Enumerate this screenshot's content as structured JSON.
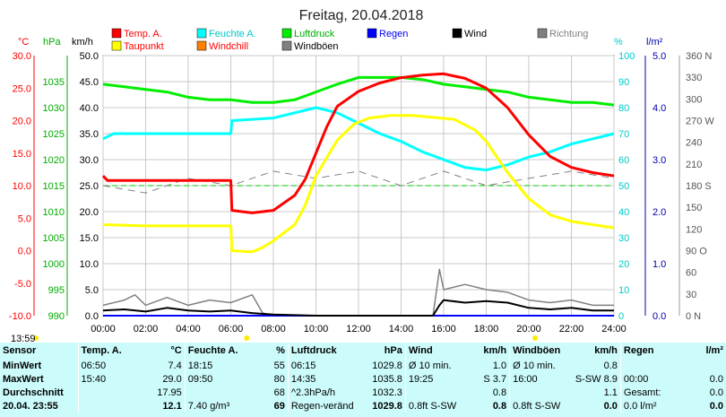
{
  "title": "Freitag, 20.04.2018",
  "colors": {
    "temp": "#ff0000",
    "humidity": "#00ffff",
    "pressure": "#00ee00",
    "wind": "#000000",
    "direction": "#808080",
    "dewpoint": "#ffff00",
    "windchill": "#ff8000",
    "gusts": "#808080",
    "rain": "#0000ff",
    "axisRed": "#ff0000",
    "axisBlue": "#0000aa",
    "axisCyan": "#00c8c8",
    "axisGreen": "#00aa00",
    "grid": "#c8c8c8",
    "dashed": "#00cc00"
  },
  "axes": {
    "celsius_label": "°C",
    "hpa_label": "hPa",
    "kmh_label": "km/h",
    "pct_label": "%",
    "rain_label": "l/m²",
    "celsius_ticks": [
      "30.0",
      "25.0",
      "20.0",
      "15.0",
      "10.0",
      "5.0",
      "0.0",
      "-5.0",
      "-10.0"
    ],
    "hpa_ticks": [
      "1035",
      "1030",
      "1025",
      "1020",
      "1015",
      "1010",
      "1005",
      "1000",
      "995",
      "990"
    ],
    "kmh_ticks": [
      "50.0",
      "45.0",
      "40.0",
      "35.0",
      "30.0",
      "25.0",
      "20.0",
      "15.0",
      "10.0",
      "5.0",
      "0.0"
    ],
    "pct_ticks": [
      "100",
      "90",
      "80",
      "70",
      "60",
      "50",
      "40",
      "30",
      "20",
      "10",
      "0"
    ],
    "rain_ticks": [
      "5.0",
      "4.0",
      "3.0",
      "2.0",
      "1.0",
      "0.0"
    ],
    "dir_ticks": [
      "360 N",
      "330",
      "300",
      "270 W",
      "240",
      "210",
      "180 S",
      "150",
      "120",
      "90 O",
      "60",
      "30",
      "0 N"
    ],
    "time_ticks": [
      "00:00",
      "02:00",
      "04:00",
      "06:00",
      "08:00",
      "10:00",
      "12:00",
      "14:00",
      "16:00",
      "18:00",
      "20:00",
      "22:00",
      "24:00"
    ]
  },
  "legend": [
    {
      "label": "Temp. A.",
      "color": "#ff0000",
      "text_color": "#ff0000"
    },
    {
      "label": "Feuchte A.",
      "color": "#00ffff",
      "text_color": "#00c8c8"
    },
    {
      "label": "Luftdruck",
      "color": "#00ee00",
      "text_color": "#00aa00"
    },
    {
      "label": "Regen",
      "color": "#0000ff",
      "text_color": "#0000ff"
    },
    {
      "label": "Wind",
      "color": "#000000",
      "text_color": "#000000"
    },
    {
      "label": "Richtung",
      "color": "#808080",
      "text_color": "#808080"
    },
    {
      "label": "Taupunkt",
      "color": "#ffff00",
      "text_color": "#ff0000"
    },
    {
      "label": "Windchill",
      "color": "#ff8000",
      "text_color": "#ff0000"
    },
    {
      "label": "Windböen",
      "color": "#808080",
      "text_color": "#000000"
    }
  ],
  "chart_data": {
    "type": "line",
    "title": "Freitag, 20.04.2018",
    "xlabel": "",
    "x_unit": "hours",
    "xlim": [
      0,
      24
    ],
    "ylim_celsius": [
      -10,
      30
    ],
    "ylim_hpa": [
      990,
      1040
    ],
    "ylim_kmh": [
      0,
      50
    ],
    "ylim_pct": [
      0,
      100
    ],
    "ylim_rain": [
      0,
      5
    ],
    "ylim_dir": [
      0,
      360
    ],
    "grid": true,
    "series": [
      {
        "name": "Temp. A.",
        "unit": "°C",
        "points": [
          [
            0,
            11.5
          ],
          [
            0.2,
            10.8
          ],
          [
            2,
            10.8
          ],
          [
            4,
            10.8
          ],
          [
            6,
            10.8
          ],
          [
            6.05,
            6.2
          ],
          [
            7,
            5.8
          ],
          [
            8,
            6.2
          ],
          [
            9,
            8.5
          ],
          [
            9.5,
            11
          ],
          [
            10,
            15
          ],
          [
            10.5,
            19
          ],
          [
            11,
            22.2
          ],
          [
            12,
            24.5
          ],
          [
            13,
            25.8
          ],
          [
            14,
            26.6
          ],
          [
            15,
            27
          ],
          [
            16,
            27.2
          ],
          [
            17,
            26.5
          ],
          [
            18,
            25
          ],
          [
            19,
            22
          ],
          [
            20,
            17.8
          ],
          [
            21,
            14.5
          ],
          [
            22,
            12.8
          ],
          [
            23,
            12
          ],
          [
            24,
            11.5
          ]
        ]
      },
      {
        "name": "Taupunkt",
        "unit": "°C",
        "points": [
          [
            0,
            4
          ],
          [
            2,
            3.8
          ],
          [
            4,
            3.8
          ],
          [
            6,
            3.8
          ],
          [
            6.05,
            0
          ],
          [
            7,
            -0.2
          ],
          [
            7.5,
            0.5
          ],
          [
            8,
            1.5
          ],
          [
            9,
            4
          ],
          [
            9.5,
            7
          ],
          [
            10,
            11.5
          ],
          [
            11,
            17
          ],
          [
            11.8,
            19.5
          ],
          [
            12.5,
            20.4
          ],
          [
            13.5,
            20.8
          ],
          [
            14.5,
            20.8
          ],
          [
            15.5,
            20.5
          ],
          [
            16.5,
            20.2
          ],
          [
            17.5,
            18.5
          ],
          [
            18,
            16.8
          ],
          [
            19,
            12
          ],
          [
            20,
            8
          ],
          [
            21,
            5.5
          ],
          [
            22,
            4.5
          ],
          [
            23,
            4
          ],
          [
            24,
            3.5
          ]
        ]
      },
      {
        "name": "Feuchte A.",
        "unit": "%",
        "points": [
          [
            0,
            68
          ],
          [
            0.5,
            70
          ],
          [
            2,
            70
          ],
          [
            4,
            70
          ],
          [
            6,
            70
          ],
          [
            6.05,
            75
          ],
          [
            8,
            76
          ],
          [
            9,
            78
          ],
          [
            10,
            80
          ],
          [
            11,
            78
          ],
          [
            12,
            74
          ],
          [
            13,
            70
          ],
          [
            14,
            67
          ],
          [
            15,
            63
          ],
          [
            16,
            60
          ],
          [
            17,
            57
          ],
          [
            18,
            56
          ],
          [
            19,
            58
          ],
          [
            20,
            61
          ],
          [
            21,
            63
          ],
          [
            22,
            66
          ],
          [
            23,
            68
          ],
          [
            24,
            70
          ]
        ]
      },
      {
        "name": "Luftdruck",
        "unit": "hPa",
        "points": [
          [
            0,
            1034.5
          ],
          [
            1,
            1034
          ],
          [
            2,
            1033.5
          ],
          [
            3,
            1033
          ],
          [
            4,
            1032
          ],
          [
            5,
            1031.5
          ],
          [
            6,
            1031.5
          ],
          [
            7,
            1031
          ],
          [
            8,
            1031
          ],
          [
            9,
            1031.5
          ],
          [
            10,
            1033
          ],
          [
            11,
            1034.5
          ],
          [
            12,
            1035.8
          ],
          [
            13,
            1035.8
          ],
          [
            14,
            1035.8
          ],
          [
            15,
            1035.4
          ],
          [
            16,
            1034.5
          ],
          [
            17,
            1034
          ],
          [
            18,
            1033.5
          ],
          [
            19,
            1033
          ],
          [
            20,
            1032
          ],
          [
            21,
            1031.5
          ],
          [
            22,
            1031
          ],
          [
            23,
            1031
          ],
          [
            24,
            1030.5
          ]
        ]
      },
      {
        "name": "Wind",
        "unit": "km/h",
        "points": [
          [
            0,
            1
          ],
          [
            1,
            1.2
          ],
          [
            2,
            0.8
          ],
          [
            3,
            1.5
          ],
          [
            4,
            1
          ],
          [
            5,
            0.8
          ],
          [
            6,
            1
          ],
          [
            7,
            0.5
          ],
          [
            8,
            0.2
          ],
          [
            10,
            0
          ],
          [
            12,
            0
          ],
          [
            14,
            0
          ],
          [
            15.5,
            0
          ],
          [
            15.8,
            2
          ],
          [
            16,
            3
          ],
          [
            17,
            2.5
          ],
          [
            18,
            2.8
          ],
          [
            19,
            2.5
          ],
          [
            20,
            1.5
          ],
          [
            21,
            1.2
          ],
          [
            22,
            1.5
          ],
          [
            23,
            1
          ],
          [
            24,
            1
          ]
        ]
      },
      {
        "name": "Windböen",
        "unit": "km/h",
        "points": [
          [
            0,
            2
          ],
          [
            1,
            3
          ],
          [
            1.5,
            4
          ],
          [
            2,
            2
          ],
          [
            3,
            3.5
          ],
          [
            4,
            2
          ],
          [
            5,
            3
          ],
          [
            6,
            2.5
          ],
          [
            7,
            4
          ],
          [
            7.5,
            0.5
          ],
          [
            8,
            0
          ],
          [
            15.5,
            0
          ],
          [
            15.8,
            8.9
          ],
          [
            16,
            5
          ],
          [
            17,
            6
          ],
          [
            18,
            5
          ],
          [
            19,
            4.5
          ],
          [
            20,
            3
          ],
          [
            21,
            2.5
          ],
          [
            22,
            3
          ],
          [
            23,
            2
          ],
          [
            24,
            2
          ]
        ]
      },
      {
        "name": "Richtung",
        "unit": "°",
        "points": [
          [
            0,
            180
          ],
          [
            2,
            170
          ],
          [
            4,
            190
          ],
          [
            6,
            180
          ],
          [
            8,
            200
          ],
          [
            10,
            190
          ],
          [
            12,
            200
          ],
          [
            14,
            180
          ],
          [
            16,
            200
          ],
          [
            18,
            180
          ],
          [
            20,
            190
          ],
          [
            22,
            200
          ],
          [
            24,
            190
          ]
        ]
      },
      {
        "name": "Regen",
        "unit": "l/m²",
        "points": [
          [
            0,
            0
          ],
          [
            24,
            0
          ]
        ]
      }
    ]
  },
  "timestamp_label": "13:59",
  "stats": {
    "headers": {
      "sensor": "Sensor",
      "temp": "Temp. A.",
      "temp_unit": "°C",
      "hum": "Feuchte A.",
      "hum_unit": "%",
      "press": "Luftdruck",
      "press_unit": "hPa",
      "wind": "Wind",
      "wind_unit": "km/h",
      "gust": "Windböen",
      "gust_unit": "km/h",
      "rain": "Regen",
      "rain_unit": "l/m²"
    },
    "rows": [
      {
        "label": "MinWert",
        "t_time": "06:50",
        "t_val": "7.4",
        "h_time": "18:15",
        "h_val": "55",
        "p_time": "06:15",
        "p_val": "1029.8",
        "w_a": "Ø 10 min.",
        "w_val": "1.0",
        "g_a": "Ø 10 min.",
        "g_val": "0.8",
        "r_a": "",
        "r_val": ""
      },
      {
        "label": "MaxWert",
        "t_time": "15:40",
        "t_val": "29.0",
        "h_time": "09:50",
        "h_val": "80",
        "p_time": "14:35",
        "p_val": "1035.8",
        "w_a": "19:25",
        "w_val": "S 3.7",
        "g_a": "16:00",
        "g_val": "S-SW 8.9",
        "r_a": "00:00",
        "r_val": "0.0"
      },
      {
        "label": "Durchschnitt",
        "t_time": "",
        "t_val": "17.95",
        "h_time": "",
        "h_val": "68",
        "p_time": "^2.3hPa/h",
        "p_val": "1032.3",
        "w_a": "",
        "w_val": "0.8",
        "g_a": "",
        "g_val": "1.1",
        "r_a": "Gesamt:",
        "r_val": "0.0"
      },
      {
        "label": "20.04. 23:55",
        "t_time": "",
        "t_val": "12.1",
        "h_time": "7.40 g/m³",
        "h_val": "69",
        "p_time": "Regen-veränd",
        "p_val": "1029.8",
        "w_a": "0.8ft S-SW",
        "w_val": "0.8",
        "g_a": "0.8ft S-SW",
        "g_val": "0.0",
        "r_a": "0.0 l/m²",
        "r_val": "0.0"
      }
    ]
  }
}
